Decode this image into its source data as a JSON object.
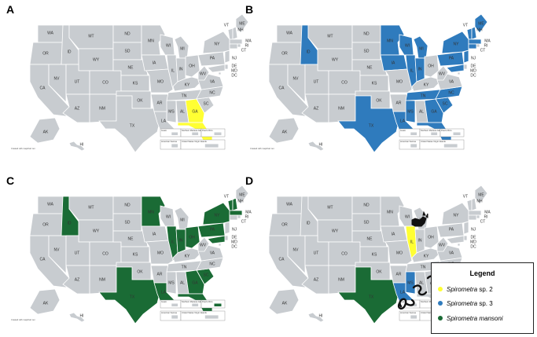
{
  "panels": [
    {
      "letter": "A",
      "highlighted": {
        "FL": "#ffff33",
        "GA": "#ffff33"
      },
      "credit": "Created with mapchart.net"
    },
    {
      "letter": "B",
      "highlighted": {
        "ID": "#2f7bbd",
        "MN": "#2f7bbd",
        "WI": "#2f7bbd",
        "IA": "#2f7bbd",
        "IL": "#2f7bbd",
        "IN": "#2f7bbd",
        "MI": "#2f7bbd",
        "TX": "#2f7bbd",
        "LA": "#2f7bbd",
        "MS": "#2f7bbd",
        "TN": "#2f7bbd",
        "GA": "#2f7bbd",
        "SC": "#2f7bbd",
        "NC": "#2f7bbd",
        "FL": "#2f7bbd",
        "NY": "#2f7bbd",
        "PA": "#2f7bbd",
        "NJ": "#2f7bbd",
        "MA": "#2f7bbd",
        "VT": "#2f7bbd",
        "NH": "#2f7bbd",
        "CT": "#2f7bbd",
        "ME": "#2f7bbd",
        "MD": "#2f7bbd"
      },
      "credit": "Created with mapchart.net"
    },
    {
      "letter": "C",
      "highlighted": {
        "ID": "#1a6b35",
        "MN": "#1a6b35",
        "IL": "#1a6b35",
        "IN": "#1a6b35",
        "TX": "#1a6b35",
        "LA": "#1a6b35",
        "GA": "#1a6b35",
        "FL": "#1a6b35",
        "SC": "#1a6b35",
        "MA": "#1a6b35",
        "VT": "#1a6b35",
        "NH": "#1a6b35",
        "PA": "#1a6b35",
        "NY": "#1a6b35",
        "MD": "#1a6b35",
        "OH": "#1a6b35",
        "PR": "#1a6b35"
      },
      "credit": "Created with mapchart.net"
    },
    {
      "letter": "D",
      "highlighted": {
        "IL": "#ffff33",
        "TX": "#1a6b35",
        "LA": "#2f7bbd",
        "MS": "#2f7bbd",
        "SC": "#2f7bbd",
        "PR": "#1a6b35"
      },
      "credit": ""
    }
  ],
  "state_labels": [
    "WA",
    "OR",
    "CA",
    "NV",
    "ID",
    "MT",
    "WY",
    "UT",
    "AZ",
    "CO",
    "NM",
    "ND",
    "SD",
    "NE",
    "KS",
    "OK",
    "TX",
    "MN",
    "IA",
    "MO",
    "AR",
    "LA",
    "WI",
    "IL",
    "MI",
    "IN",
    "OH",
    "KY",
    "TN",
    "MS",
    "AL",
    "GA",
    "FL",
    "SC",
    "NC",
    "VA",
    "WV",
    "PA",
    "NY",
    "VT",
    "NH",
    "ME",
    "MA",
    "RI",
    "CT",
    "NJ",
    "DE",
    "MD",
    "DC",
    "AK",
    "HI"
  ],
  "inset_labels": {
    "guam": "Guam",
    "nmi": "Northern Mariana Islands",
    "pr": "Puerto Rico",
    "samoa": "American Samoa",
    "usvi": "United States Virgin Islands"
  },
  "legend": {
    "title": "Legend",
    "items": [
      {
        "genus": "Spirometra",
        "suffix": " sp. 2",
        "color": "#ffff33"
      },
      {
        "genus": "Spirometra",
        "suffix": " sp. 3",
        "color": "#2f7bbd"
      },
      {
        "genus": "Spirometra mansoni",
        "suffix": "",
        "color": "#1a6b35"
      }
    ]
  },
  "colors": {
    "default_state": "#c8ccd0",
    "border": "#ffffff",
    "animal": "#111111"
  },
  "icons": [
    "cat-icon",
    "snake-icon",
    "snake-icon",
    "snake-icon",
    "cat-icon"
  ]
}
